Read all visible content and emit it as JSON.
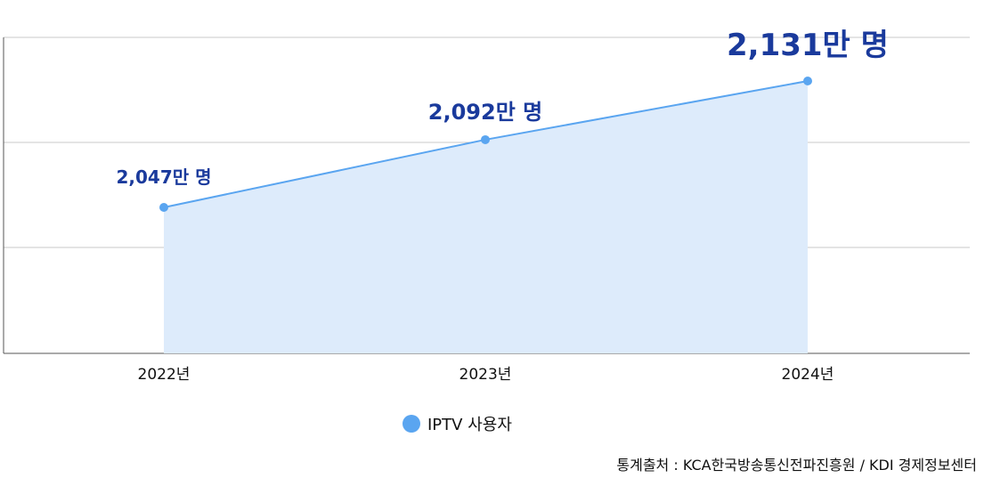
{
  "chart_data": {
    "type": "area",
    "title": "",
    "xlabel": "",
    "ylabel": "",
    "categories": [
      "2022년",
      "2023년",
      "2024년"
    ],
    "series": [
      {
        "name": "IPTV 사용자",
        "values": [
          2047,
          2092,
          2131
        ],
        "labels": [
          "2,047만 명",
          "2,092만 명",
          "2,131만 명"
        ]
      }
    ],
    "ylim": [
      1950,
      2160
    ],
    "grid": true,
    "legend_position": "bottom-center",
    "colors": {
      "line": "#5aa5f0",
      "fill": "#ddebfb",
      "marker": "#5aa5f0",
      "label": "#1a3a9c",
      "grid": "#c8c8c8",
      "axis": "#555555"
    }
  },
  "legend": {
    "label": "IPTV 사용자"
  },
  "source": "통계출처 : KCA한국방송통신전파진흥원 / KDI 경제정보센터"
}
